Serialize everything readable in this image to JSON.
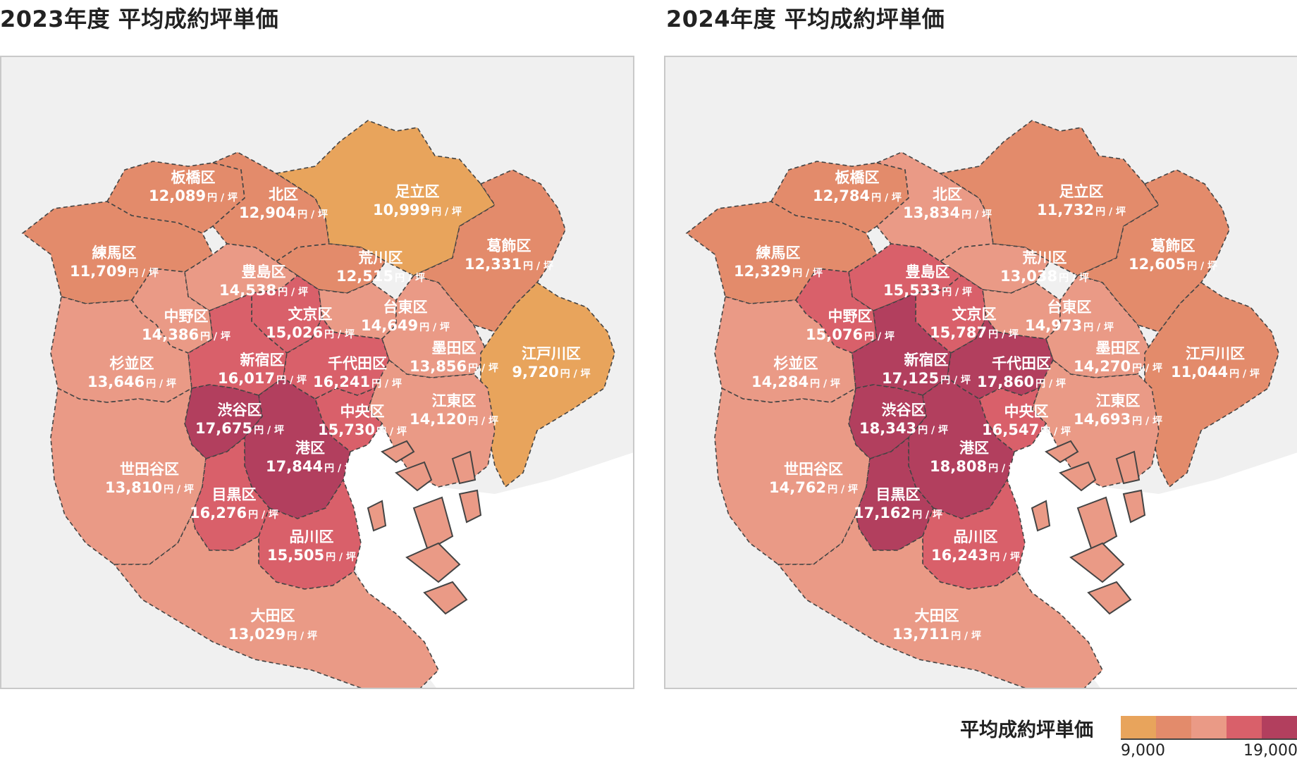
{
  "left_panel": {
    "title": "2023年度 平均成約坪単価"
  },
  "right_panel": {
    "title": "2024年度 平均成約坪単価"
  },
  "legend": {
    "title": "平均成約坪単価",
    "min_label": "9,000",
    "max_label": "19,000",
    "colors": [
      "#e8a45c",
      "#e38b6b",
      "#ea9a86",
      "#d9606a",
      "#b23f5e"
    ]
  },
  "unit": "円 / 坪",
  "wards": [
    {
      "key": "itabashi",
      "name": "板橋区",
      "v2023": "12,089",
      "v2024": "12,784",
      "c2023": 1,
      "c2024": 1
    },
    {
      "key": "kita",
      "name": "北区",
      "v2023": "12,904",
      "v2024": "13,834",
      "c2023": 1,
      "c2024": 2
    },
    {
      "key": "adachi",
      "name": "足立区",
      "v2023": "10,999",
      "v2024": "11,732",
      "c2023": 0,
      "c2024": 1
    },
    {
      "key": "nerima",
      "name": "練馬区",
      "v2023": "11,709",
      "v2024": "12,329",
      "c2023": 1,
      "c2024": 1
    },
    {
      "key": "katsushika",
      "name": "葛飾区",
      "v2023": "12,331",
      "v2024": "12,605",
      "c2023": 1,
      "c2024": 1
    },
    {
      "key": "arakawa",
      "name": "荒川区",
      "v2023": "12,515",
      "v2024": "13,038",
      "c2023": 1,
      "c2024": 2
    },
    {
      "key": "toshima",
      "name": "豊島区",
      "v2023": "14,538",
      "v2024": "15,533",
      "c2023": 2,
      "c2024": 3
    },
    {
      "key": "taito",
      "name": "台東区",
      "v2023": "14,649",
      "v2024": "14,973",
      "c2023": 2,
      "c2024": 2
    },
    {
      "key": "nakano",
      "name": "中野区",
      "v2023": "14,386",
      "v2024": "15,076",
      "c2023": 2,
      "c2024": 3
    },
    {
      "key": "bunkyo",
      "name": "文京区",
      "v2023": "15,026",
      "v2024": "15,787",
      "c2023": 3,
      "c2024": 3
    },
    {
      "key": "sumida",
      "name": "墨田区",
      "v2023": "13,856",
      "v2024": "14,270",
      "c2023": 2,
      "c2024": 2
    },
    {
      "key": "edogawa",
      "name": "江戸川区",
      "v2023": "9,720",
      "v2024": "11,044",
      "c2023": 0,
      "c2024": 1
    },
    {
      "key": "suginami",
      "name": "杉並区",
      "v2023": "13,646",
      "v2024": "14,284",
      "c2023": 2,
      "c2024": 2
    },
    {
      "key": "shinjuku",
      "name": "新宿区",
      "v2023": "16,017",
      "v2024": "17,125",
      "c2023": 3,
      "c2024": 4
    },
    {
      "key": "chiyoda",
      "name": "千代田区",
      "v2023": "16,241",
      "v2024": "17,860",
      "c2023": 3,
      "c2024": 4
    },
    {
      "key": "koto",
      "name": "江東区",
      "v2023": "14,120",
      "v2024": "14,693",
      "c2023": 2,
      "c2024": 2
    },
    {
      "key": "shibuya",
      "name": "渋谷区",
      "v2023": "17,675",
      "v2024": "18,343",
      "c2023": 4,
      "c2024": 4
    },
    {
      "key": "chuo",
      "name": "中央区",
      "v2023": "15,730",
      "v2024": "16,547",
      "c2023": 3,
      "c2024": 3
    },
    {
      "key": "minato",
      "name": "港区",
      "v2023": "17,844",
      "v2024": "18,808",
      "c2023": 4,
      "c2024": 4
    },
    {
      "key": "setagaya",
      "name": "世田谷区",
      "v2023": "13,810",
      "v2024": "14,762",
      "c2023": 2,
      "c2024": 2
    },
    {
      "key": "meguro",
      "name": "目黒区",
      "v2023": "16,276",
      "v2024": "17,162",
      "c2023": 3,
      "c2024": 4
    },
    {
      "key": "shinagawa",
      "name": "品川区",
      "v2023": "15,505",
      "v2024": "16,243",
      "c2023": 3,
      "c2024": 3
    },
    {
      "key": "ota",
      "name": "大田区",
      "v2023": "13,029",
      "v2024": "13,711",
      "c2023": 2,
      "c2024": 2
    }
  ]
}
